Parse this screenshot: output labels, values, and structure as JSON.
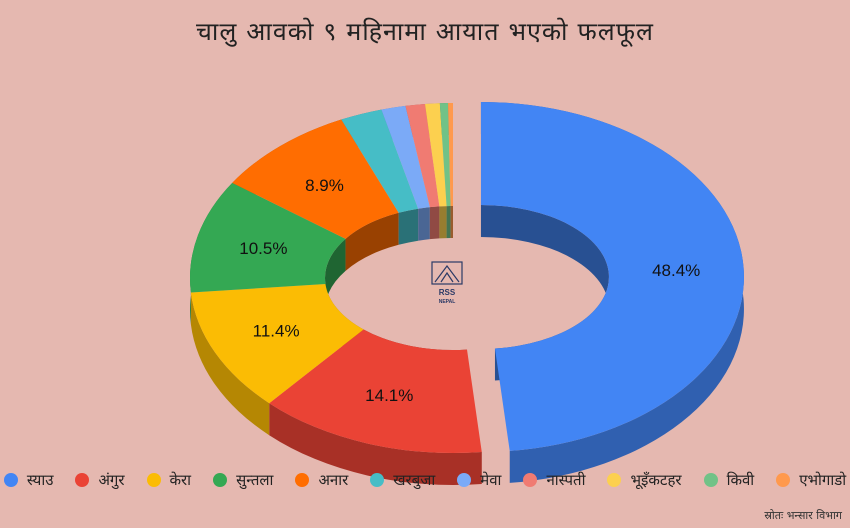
{
  "chart_data": {
    "type": "pie",
    "style": "3d-donut",
    "title": "चालु आवको ९ महिनामा आयात भएको फलफूल",
    "series": [
      {
        "name": "स्याउ",
        "value": 48.4,
        "label": "48.4%",
        "color": "#4285f4"
      },
      {
        "name": "अंगुर",
        "value": 14.1,
        "label": "14.1%",
        "color": "#ea4335"
      },
      {
        "name": "केरा",
        "value": 11.4,
        "label": "11.4%",
        "color": "#fbbc04"
      },
      {
        "name": "सुन्तला",
        "value": 10.5,
        "label": "10.5%",
        "color": "#34a853"
      },
      {
        "name": "अनार",
        "value": 8.9,
        "label": "8.9%",
        "color": "#ff6d01"
      },
      {
        "name": "खरबुजा",
        "value": 2.6,
        "label": "",
        "color": "#46bdc6"
      },
      {
        "name": "मेवा",
        "value": 1.5,
        "label": "",
        "color": "#7baaf7"
      },
      {
        "name": "नास्पती",
        "value": 1.2,
        "label": "",
        "color": "#f07b72"
      },
      {
        "name": "भूइँकटहर",
        "value": 0.9,
        "label": "",
        "color": "#fcd04f"
      },
      {
        "name": "किवी",
        "value": 0.5,
        "label": "",
        "color": "#71c287"
      },
      {
        "name": "एभोगाडो",
        "value": 0.3,
        "label": "",
        "color": "#ff994d"
      }
    ],
    "legend_position": "bottom"
  },
  "watermark": {
    "line1": "RSS",
    "line2": "NEPAL"
  },
  "source": "स्रोतः भन्सार विभाग"
}
